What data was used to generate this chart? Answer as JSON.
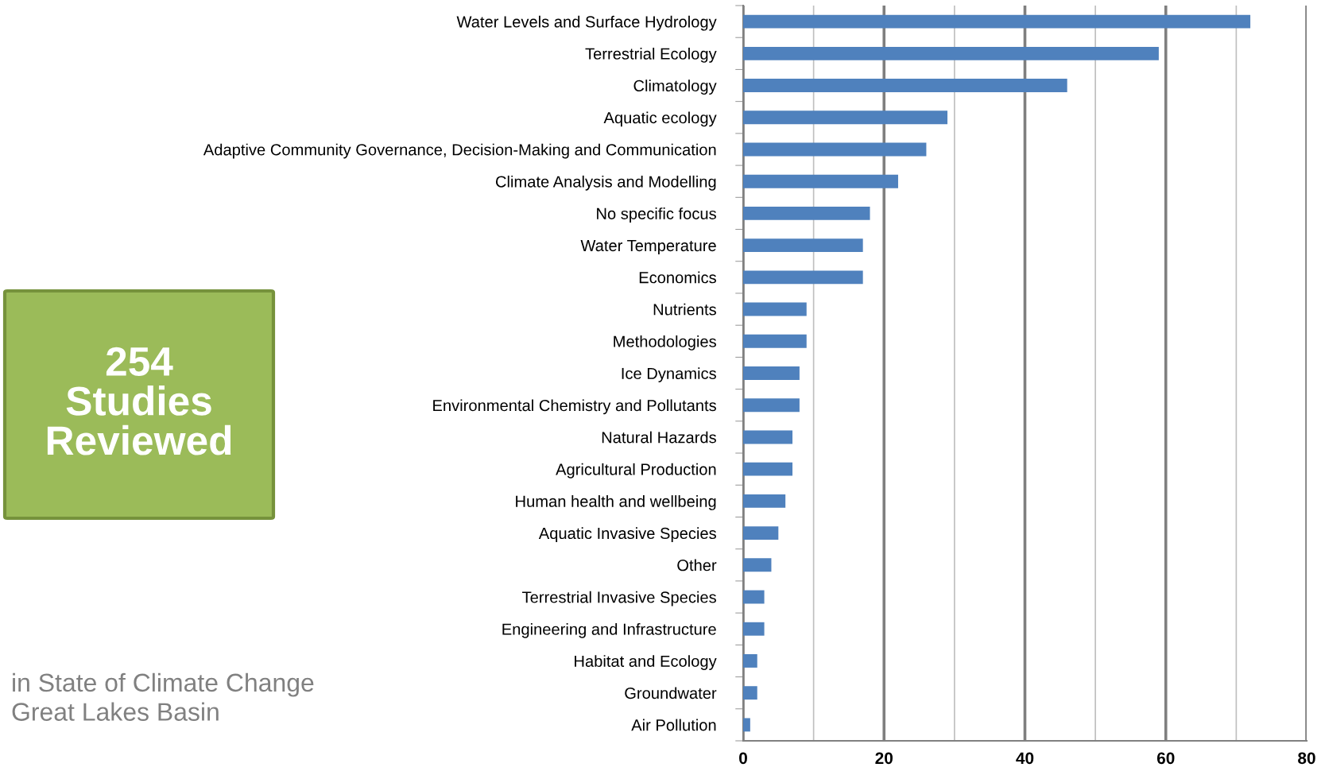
{
  "chart_data": {
    "type": "bar",
    "orientation": "horizontal",
    "categories": [
      "Water Levels and Surface Hydrology",
      "Terrestrial Ecology",
      "Climatology",
      "Aquatic ecology",
      "Adaptive Community Governance, Decision-Making and Communication",
      "Climate Analysis and Modelling",
      "No specific focus",
      "Water Temperature",
      "Economics",
      "Nutrients",
      "Methodologies",
      "Ice Dynamics",
      "Environmental Chemistry and Pollutants",
      "Natural Hazards",
      "Agricultural Production",
      "Human health and wellbeing",
      "Aquatic Invasive Species",
      "Other",
      "Terrestrial Invasive Species",
      "Engineering and Infrastructure",
      "Habitat and Ecology",
      "Groundwater",
      "Air Pollution"
    ],
    "values": [
      72,
      59,
      46,
      29,
      26,
      22,
      18,
      17,
      17,
      9,
      9,
      8,
      8,
      7,
      7,
      6,
      5,
      4,
      3,
      3,
      2,
      2,
      1
    ],
    "color": "#4f81bd",
    "xlim": [
      0,
      80
    ],
    "xticks": [
      0,
      {
        "value": 10,
        "label": null
      },
      20,
      {
        "value": 30,
        "label": null
      },
      40,
      {
        "value": 50,
        "label": null
      },
      60,
      {
        "value": 70,
        "label": null
      },
      80
    ],
    "grid": "x",
    "annotations": [
      "254\nStudies\nReviewed",
      "in State of Climate Change\nGreat Lakes Basin"
    ]
  }
}
